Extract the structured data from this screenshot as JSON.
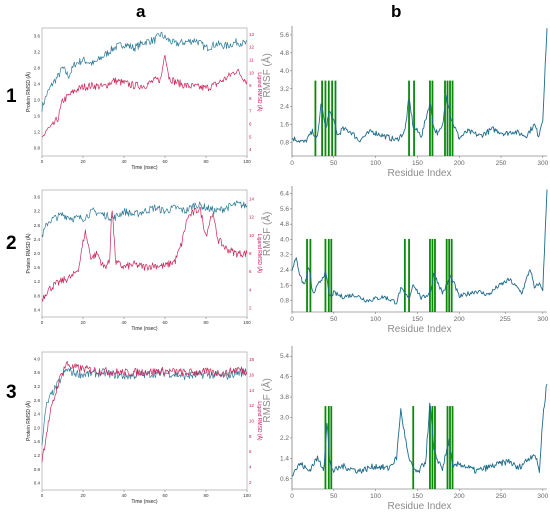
{
  "column_labels": [
    "a",
    "b"
  ],
  "row_labels": [
    "1",
    "2",
    "3"
  ],
  "colors": {
    "protein": "#2f7a99",
    "ligand": "#c8285a",
    "rmsf_line": "#1f6b8c",
    "highlight": "#0a8a0a"
  },
  "chart_data": [
    {
      "id": "1a",
      "type": "line",
      "xlabel": "Time (nsec)",
      "ylabel": "Protein RMSD (Å)",
      "ylabel_right": "Ligand RMSD (Å)",
      "x_ticks": [
        "0",
        "20",
        "40",
        "60",
        "80",
        "100"
      ],
      "y_ticks": [
        "0.8",
        "1.2",
        "1.6",
        "2.0",
        "2.4",
        "2.8",
        "3.2",
        "3.6"
      ],
      "y_ticks_right": [
        "4",
        "5",
        "6",
        "7",
        "8",
        "9",
        "10",
        "11",
        "12",
        "13"
      ],
      "xlim": [
        0,
        100
      ],
      "ylim": [
        0.6,
        3.8
      ],
      "ylim_right": [
        3.5,
        13.5
      ],
      "series": [
        {
          "role": "protein",
          "axis": "left",
          "x": [
            0,
            2,
            5,
            8,
            10,
            13,
            16,
            20,
            25,
            30,
            35,
            40,
            45,
            50,
            55,
            58,
            60,
            65,
            70,
            75,
            80,
            85,
            90,
            95,
            100
          ],
          "y": [
            1.8,
            2.1,
            2.4,
            2.6,
            2.8,
            2.6,
            2.9,
            3.0,
            2.9,
            3.1,
            3.3,
            3.4,
            3.3,
            3.45,
            3.5,
            3.65,
            3.55,
            3.4,
            3.45,
            3.5,
            3.3,
            3.4,
            3.35,
            3.45,
            3.4
          ]
        },
        {
          "role": "ligand",
          "axis": "right",
          "x": [
            0,
            2,
            5,
            8,
            10,
            13,
            16,
            20,
            25,
            30,
            35,
            40,
            45,
            50,
            55,
            58,
            60,
            62,
            65,
            70,
            75,
            80,
            85,
            90,
            95,
            100
          ],
          "y": [
            4.8,
            5.5,
            5.8,
            6.5,
            7.8,
            8.2,
            8.6,
            8.9,
            9.0,
            8.9,
            9.4,
            9.2,
            9.0,
            9.0,
            9.4,
            9.5,
            11.6,
            9.6,
            9.3,
            9.0,
            8.9,
            8.8,
            9.1,
            9.6,
            10.2,
            9.3
          ]
        }
      ]
    },
    {
      "id": "1b",
      "type": "line",
      "xlabel": "Residue Index",
      "ylabel": "RMSF (Å)",
      "x_ticks": [
        "0",
        "50",
        "100",
        "150",
        "200",
        "250",
        "300"
      ],
      "y_ticks": [
        "0.8",
        "1.6",
        "2.4",
        "3.2",
        "4.0",
        "4.8",
        "5.6"
      ],
      "xlim": [
        0,
        305
      ],
      "ylim": [
        0.2,
        6.0
      ],
      "series": [
        {
          "role": "rmsf",
          "x": [
            0,
            8,
            15,
            25,
            30,
            35,
            40,
            45,
            50,
            55,
            60,
            70,
            80,
            95,
            110,
            125,
            135,
            140,
            145,
            155,
            165,
            170,
            175,
            180,
            185,
            190,
            200,
            210,
            225,
            240,
            255,
            265,
            280,
            290,
            295,
            300,
            305
          ],
          "y": [
            1.0,
            0.9,
            0.8,
            1.3,
            0.9,
            2.6,
            1.4,
            2.2,
            1.7,
            1.1,
            1.4,
            1.3,
            0.9,
            1.3,
            1.1,
            0.9,
            1.3,
            2.8,
            1.5,
            1.1,
            2.6,
            1.4,
            1.2,
            1.5,
            3.0,
            1.9,
            1.0,
            1.3,
            1.1,
            1.4,
            1.2,
            1.3,
            1.1,
            1.6,
            1.1,
            1.9,
            5.9
          ]
        }
      ],
      "highlight_residues": [
        28,
        36,
        40,
        44,
        48,
        52,
        140,
        146,
        165,
        168,
        183,
        186,
        189,
        192
      ]
    },
    {
      "id": "2a",
      "type": "line",
      "xlabel": "Time (nsec)",
      "ylabel": "Protein RMSD (Å)",
      "ylabel_right": "Ligand RMSD (Å)",
      "x_ticks": [
        "0",
        "20",
        "40",
        "60",
        "80",
        "100"
      ],
      "y_ticks": [
        "0.4",
        "0.8",
        "1.2",
        "1.6",
        "2.0",
        "2.4",
        "2.8",
        "3.2",
        "3.6"
      ],
      "y_ticks_right": [
        "2",
        "4",
        "6",
        "8",
        "10",
        "12",
        "14"
      ],
      "xlim": [
        0,
        100
      ],
      "ylim": [
        0.2,
        3.8
      ],
      "ylim_right": [
        1,
        15
      ],
      "series": [
        {
          "role": "protein",
          "axis": "left",
          "x": [
            0,
            3,
            6,
            10,
            15,
            20,
            25,
            30,
            35,
            40,
            45,
            50,
            55,
            60,
            65,
            70,
            75,
            80,
            85,
            90,
            95,
            100
          ],
          "y": [
            2.5,
            2.9,
            3.0,
            3.1,
            3.0,
            3.0,
            3.2,
            3.1,
            3.0,
            3.2,
            3.1,
            3.2,
            3.3,
            3.2,
            3.3,
            3.2,
            3.4,
            3.3,
            3.2,
            3.3,
            3.4,
            3.35
          ]
        },
        {
          "role": "ligand",
          "axis": "right",
          "x": [
            0,
            3,
            6,
            10,
            15,
            18,
            21,
            24,
            27,
            30,
            33,
            34,
            36,
            40,
            45,
            50,
            55,
            60,
            65,
            68,
            71,
            74,
            77,
            80,
            83,
            86,
            90,
            95,
            100
          ],
          "y": [
            3.0,
            4.0,
            4.5,
            5.0,
            5.5,
            6.5,
            10.5,
            7.5,
            8.0,
            6.5,
            7.0,
            13.5,
            7.0,
            6.5,
            6.8,
            6.5,
            6.7,
            6.6,
            7.2,
            9.0,
            12.0,
            12.5,
            13.0,
            10.0,
            12.5,
            9.5,
            8.5,
            8.0,
            8.0
          ]
        }
      ]
    },
    {
      "id": "2b",
      "type": "line",
      "xlabel": "Residue Index",
      "ylabel": "RMSF (Å)",
      "x_ticks": [
        "0",
        "50",
        "100",
        "150",
        "200",
        "255",
        "300"
      ],
      "y_ticks": [
        "0.8",
        "1.6",
        "2.4",
        "3.2",
        "4.0",
        "4.8",
        "5.6",
        "6.4"
      ],
      "xlim": [
        0,
        305
      ],
      "ylim": [
        0.2,
        6.8
      ],
      "series": [
        {
          "role": "rmsf",
          "x": [
            0,
            5,
            10,
            15,
            20,
            25,
            30,
            40,
            45,
            50,
            60,
            75,
            90,
            110,
            125,
            130,
            140,
            145,
            155,
            165,
            170,
            180,
            185,
            190,
            200,
            220,
            235,
            245,
            260,
            275,
            285,
            290,
            295,
            300,
            305
          ],
          "y": [
            2.4,
            3.1,
            2.0,
            1.6,
            2.6,
            1.1,
            1.5,
            2.3,
            1.0,
            1.2,
            1.0,
            1.1,
            0.8,
            1.0,
            0.7,
            1.4,
            0.9,
            1.7,
            0.9,
            1.2,
            2.2,
            1.2,
            1.6,
            2.1,
            1.0,
            1.3,
            1.1,
            1.5,
            1.9,
            1.2,
            2.5,
            1.4,
            1.7,
            1.4,
            6.6
          ]
        }
      ],
      "highlight_residues": [
        18,
        22,
        40,
        44,
        47,
        135,
        140,
        165,
        168,
        171,
        185,
        188,
        191
      ]
    },
    {
      "id": "3a",
      "type": "line",
      "xlabel": "Time (nsec)",
      "ylabel": "Protein RMSD (Å)",
      "ylabel_right": "Ligand RMSD (Å)",
      "x_ticks": [
        "0",
        "20",
        "40",
        "60",
        "80",
        "100"
      ],
      "y_ticks": [
        "0.4",
        "0.8",
        "1.2",
        "1.6",
        "2.0",
        "2.4",
        "2.8",
        "3.2",
        "3.6",
        "4.0"
      ],
      "y_ticks_right": [
        "2",
        "4",
        "6",
        "8",
        "10",
        "12",
        "14",
        "16",
        "18"
      ],
      "xlim": [
        0,
        100
      ],
      "ylim": [
        0.2,
        4.2
      ],
      "ylim_right": [
        1,
        19
      ],
      "series": [
        {
          "role": "protein",
          "axis": "left",
          "x": [
            0,
            2,
            4,
            6,
            8,
            10,
            12,
            15,
            20,
            30,
            40,
            50,
            60,
            70,
            80,
            90,
            95,
            100
          ],
          "y": [
            1.6,
            2.6,
            2.9,
            3.1,
            3.3,
            3.5,
            3.7,
            3.6,
            3.55,
            3.6,
            3.5,
            3.55,
            3.6,
            3.5,
            3.55,
            3.5,
            3.6,
            3.6
          ]
        },
        {
          "role": "ligand",
          "axis": "right",
          "x": [
            0,
            2,
            4,
            6,
            8,
            10,
            12,
            15,
            20,
            30,
            40,
            50,
            60,
            70,
            80,
            90,
            95,
            100
          ],
          "y": [
            5.0,
            8.0,
            11.0,
            13.0,
            15.0,
            16.5,
            17.5,
            17.0,
            16.8,
            16.5,
            16.3,
            16.4,
            16.5,
            16.3,
            16.4,
            16.2,
            16.8,
            16.5
          ]
        }
      ]
    },
    {
      "id": "3b",
      "type": "line",
      "xlabel": "Residue Index",
      "ylabel": "RMSF (Å)",
      "x_ticks": [
        "0",
        "50",
        "100",
        "150",
        "200",
        "250",
        "300"
      ],
      "y_ticks": [
        "0.6",
        "1.4",
        "2.2",
        "3.0",
        "3.8",
        "4.6",
        "5.4"
      ],
      "xlim": [
        0,
        305
      ],
      "ylim": [
        0.2,
        5.8
      ],
      "series": [
        {
          "role": "rmsf",
          "x": [
            0,
            10,
            20,
            30,
            38,
            42,
            45,
            50,
            60,
            80,
            100,
            115,
            125,
            130,
            140,
            150,
            160,
            165,
            170,
            180,
            188,
            192,
            200,
            220,
            240,
            250,
            260,
            270,
            280,
            290,
            296,
            300,
            305
          ],
          "y": [
            0.8,
            1.2,
            0.9,
            1.4,
            1.0,
            2.9,
            1.2,
            0.9,
            1.1,
            0.9,
            1.1,
            1.0,
            1.4,
            3.3,
            1.3,
            0.8,
            1.3,
            3.6,
            1.6,
            1.0,
            2.1,
            1.0,
            1.2,
            0.9,
            1.1,
            1.2,
            1.3,
            1.0,
            1.3,
            1.6,
            0.9,
            3.0,
            4.4
          ]
        }
      ],
      "highlight_residues": [
        40,
        44,
        47,
        145,
        165,
        168,
        171,
        186,
        189,
        192
      ]
    }
  ]
}
